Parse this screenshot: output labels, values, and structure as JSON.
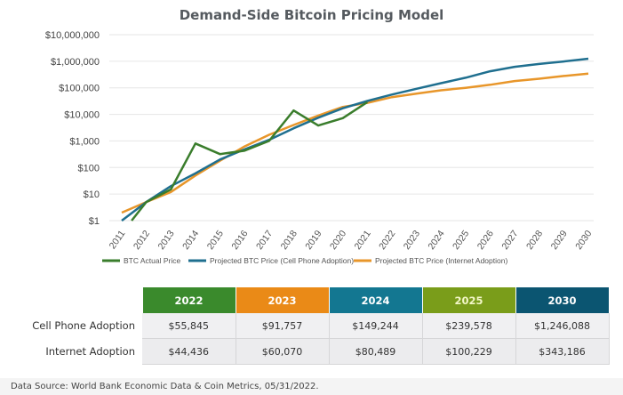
{
  "chart_data": {
    "type": "line",
    "title": "Demand-Side Bitcoin Pricing Model",
    "xlabel": "",
    "ylabel": "",
    "yscale": "log",
    "ylim": [
      1,
      10000000
    ],
    "grid": true,
    "legend_position": "bottom",
    "y_ticks": [
      1,
      10,
      100,
      1000,
      10000,
      100000,
      1000000,
      10000000
    ],
    "y_tick_labels": [
      "$1",
      "$10",
      "$100",
      "$1,000",
      "$10,000",
      "$100,000",
      "$1,000,000",
      "$10,000,000"
    ],
    "categories": [
      "2011",
      "2012",
      "2013",
      "2014",
      "2015",
      "2016",
      "2017",
      "2018",
      "2019",
      "2020",
      "2021",
      "2022",
      "2023",
      "2024",
      "2025",
      "2026",
      "2027",
      "2028",
      "2029",
      "2030"
    ],
    "series": [
      {
        "name": "BTC Actual Price",
        "color": "#3a7d2c",
        "x_start_offset": 0.4,
        "values": [
          1,
          5,
          15,
          800,
          320,
          430,
          1000,
          14000,
          3800,
          7200,
          29000
        ]
      },
      {
        "name": "Projected BTC Price (Cell Phone Adoption)",
        "color": "#1f6f8f",
        "values": [
          1,
          5,
          20,
          60,
          200,
          480,
          1100,
          3000,
          7500,
          17000,
          32000,
          55845,
          91757,
          149244,
          239578,
          420000,
          620000,
          790000,
          980000,
          1246088
        ]
      },
      {
        "name": "Projected BTC Price (Internet Adoption)",
        "color": "#e8962a",
        "values": [
          2,
          5,
          12,
          50,
          180,
          620,
          1700,
          4000,
          9000,
          19000,
          27000,
          44436,
          60070,
          80489,
          100229,
          130000,
          180000,
          220000,
          280000,
          343186
        ]
      }
    ]
  },
  "table": {
    "columns": [
      {
        "label": "2022",
        "color": "#3a8a2c"
      },
      {
        "label": "2023",
        "color": "#ea8a17"
      },
      {
        "label": "2024",
        "color": "#137791"
      },
      {
        "label": "2025",
        "color": "#7a9d1a"
      },
      {
        "label": "2030",
        "color": "#0b5571"
      }
    ],
    "rows": [
      {
        "label": "Cell Phone Adoption",
        "values": [
          "$55,845",
          "$91,757",
          "$149,244",
          "$239,578",
          "$1,246,088"
        ]
      },
      {
        "label": "Internet Adoption",
        "values": [
          "$44,436",
          "$60,070",
          "$80,489",
          "$100,229",
          "$343,186"
        ]
      }
    ]
  },
  "source": "Data Source: World Bank Economic Data & Coin Metrics, 05/31/2022."
}
